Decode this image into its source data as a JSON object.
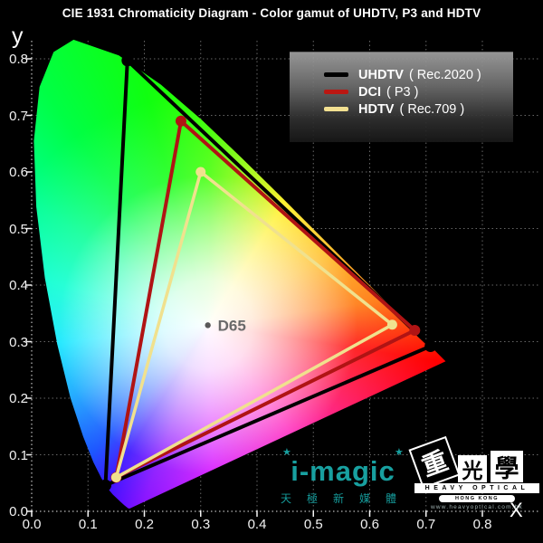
{
  "title": "CIE 1931 Chromaticity Diagram - Color gamut of UHDTV, P3 and HDTV",
  "axes": {
    "x_label": "X",
    "y_label": "y",
    "x_ticks": [
      "0.0",
      "0.1",
      "0.2",
      "0.3",
      "0.4",
      "0.5",
      "0.6",
      "0.7",
      "0.8"
    ],
    "y_ticks": [
      "0.0",
      "0.1",
      "0.2",
      "0.3",
      "0.4",
      "0.5",
      "0.6",
      "0.7",
      "0.8"
    ]
  },
  "legend": {
    "entries": [
      {
        "name": "UHDTV",
        "detail": "( Rec.2020 )",
        "color": "#000000"
      },
      {
        "name": "DCI",
        "detail": "( P3 )",
        "color": "#bb1712"
      },
      {
        "name": "HDTV",
        "detail": "( Rec.709 )",
        "color": "#f2e091"
      }
    ]
  },
  "chart_data": {
    "type": "line",
    "title": "CIE 1931 Chromaticity Diagram - Color gamut of UHDTV, P3 and HDTV",
    "xlabel": "X",
    "ylabel": "y",
    "xlim": [
      0.0,
      0.9
    ],
    "ylim": [
      0.0,
      0.85
    ],
    "tick_step": 0.1,
    "grid": true,
    "legend_position": "top-right",
    "series": [
      {
        "name": "UHDTV ( Rec.2020 )",
        "color": "#000000",
        "stroke_width": 4,
        "marker_r": 6.5,
        "points": [
          [
            0.708,
            0.292
          ],
          [
            0.17,
            0.797
          ],
          [
            0.131,
            0.046
          ]
        ]
      },
      {
        "name": "DCI ( P3 )",
        "color": "#b01414",
        "stroke_width": 4,
        "marker_r": 6,
        "points": [
          [
            0.68,
            0.32
          ],
          [
            0.265,
            0.69
          ],
          [
            0.15,
            0.06
          ]
        ]
      },
      {
        "name": "HDTV ( Rec.709 )",
        "color": "#f0e18e",
        "stroke_width": 3.5,
        "marker_r": 5.5,
        "points": [
          [
            0.64,
            0.33
          ],
          [
            0.3,
            0.6
          ],
          [
            0.15,
            0.06
          ]
        ]
      }
    ],
    "white_point": {
      "label": "D65",
      "x": 0.3127,
      "y": 0.329
    },
    "spectral_locus": [
      [
        0.7347,
        0.2653
      ],
      [
        0.6915,
        0.3083
      ],
      [
        0.6658,
        0.334
      ],
      [
        0.627,
        0.3725
      ],
      [
        0.5752,
        0.4242
      ],
      [
        0.5125,
        0.4866
      ],
      [
        0.4441,
        0.5547
      ],
      [
        0.3731,
        0.6245
      ],
      [
        0.3016,
        0.6923
      ],
      [
        0.2296,
        0.7543
      ],
      [
        0.1547,
        0.8059
      ],
      [
        0.0743,
        0.8338
      ],
      [
        0.0389,
        0.812
      ],
      [
        0.0139,
        0.7502
      ],
      [
        0.0039,
        0.6548
      ],
      [
        0.0082,
        0.5384
      ],
      [
        0.0235,
        0.4127
      ],
      [
        0.0454,
        0.295
      ],
      [
        0.0687,
        0.2007
      ],
      [
        0.0913,
        0.1327
      ],
      [
        0.1096,
        0.0868
      ],
      [
        0.1241,
        0.0578
      ],
      [
        0.1355,
        0.0399
      ],
      [
        0.144,
        0.0297
      ],
      [
        0.1566,
        0.0177
      ],
      [
        0.1644,
        0.0109
      ],
      [
        0.1714,
        0.0051
      ],
      [
        0.1741,
        0.005
      ]
    ]
  },
  "logos": {
    "imagic": {
      "text": "i-magic",
      "star": "★",
      "subtext": "天極新媒體",
      "color": "#18a0a0"
    },
    "heavy_optical": {
      "char1": "重",
      "char2": "光",
      "char3": "學",
      "line1": "HEAVY OPTICAL",
      "line2": "HONG KONG",
      "url": "www.heavyoptical.com.hk"
    }
  },
  "colors": {
    "background": "#000000",
    "grid": "#ffffff",
    "title_text": "#ffffff",
    "tick_text": "#f2f2f2",
    "white_point_text": "#6a6a6a"
  }
}
